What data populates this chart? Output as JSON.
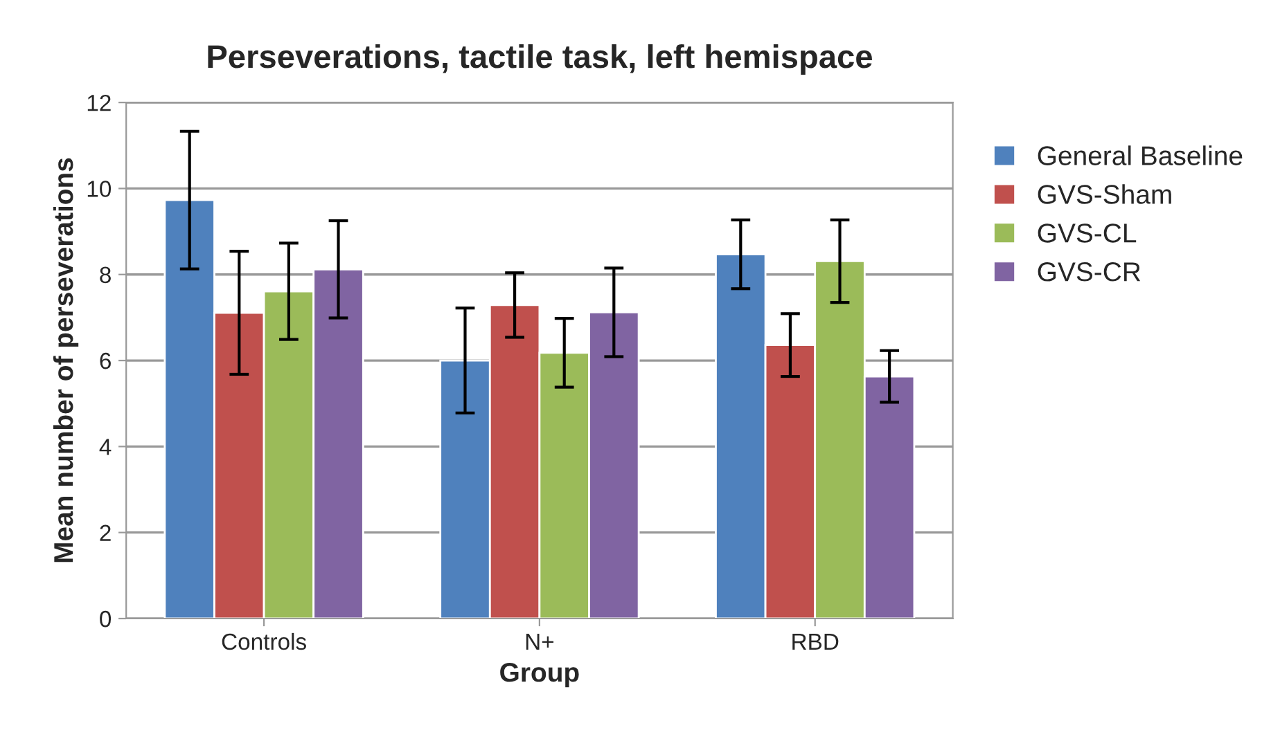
{
  "chart_data": {
    "type": "bar",
    "title": "Perseverations, tactile task, left hemispace",
    "xlabel": "Group",
    "ylabel": "Mean number of perseverations",
    "categories": [
      "Controls",
      "N+",
      "RBD"
    ],
    "series": [
      {
        "name": "General Baseline",
        "color": "#4f81bd",
        "values": [
          9.73,
          6.0,
          8.47
        ],
        "errors": [
          1.6,
          1.22,
          0.8
        ]
      },
      {
        "name": "GVS-Sham",
        "color": "#c0504d",
        "values": [
          7.11,
          7.29,
          6.36
        ],
        "errors": [
          1.43,
          0.75,
          0.73
        ]
      },
      {
        "name": "GVS-CL",
        "color": "#9bbb59",
        "values": [
          7.61,
          6.18,
          8.31
        ],
        "errors": [
          1.12,
          0.8,
          0.96
        ]
      },
      {
        "name": "GVS-CR",
        "color": "#8064a2",
        "values": [
          8.12,
          7.12,
          5.63
        ],
        "errors": [
          1.13,
          1.03,
          0.6
        ]
      }
    ],
    "ylim": [
      0,
      12
    ],
    "yticks": [
      0,
      2,
      4,
      6,
      8,
      10,
      12
    ],
    "grid": "y",
    "legend": "right"
  }
}
